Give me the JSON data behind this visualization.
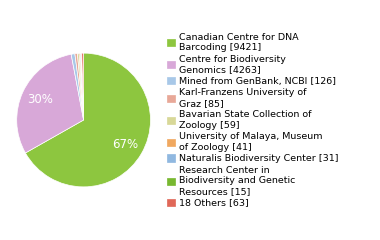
{
  "labels": [
    "Canadian Centre for DNA\nBarcoding [9421]",
    "Centre for Biodiversity\nGenomics [4263]",
    "Mined from GenBank, NCBI [126]",
    "Karl-Franzens University of\nGraz [85]",
    "Bavarian State Collection of\nZoology [59]",
    "University of Malaya, Museum\nof Zoology [41]",
    "Naturalis Biodiversity Center [31]",
    "Research Center in\nBiodiversity and Genetic\nResources [15]",
    "18 Others [63]"
  ],
  "values": [
    9421,
    4263,
    126,
    85,
    59,
    41,
    31,
    15,
    63
  ],
  "colors": [
    "#8dc63f",
    "#d8a8d8",
    "#a8c8e8",
    "#e8a898",
    "#d8d898",
    "#f0a860",
    "#90b8e0",
    "#78b830",
    "#e06858"
  ],
  "background_color": "#ffffff",
  "legend_fontsize": 6.8,
  "autopct_fontsize": 8.5
}
